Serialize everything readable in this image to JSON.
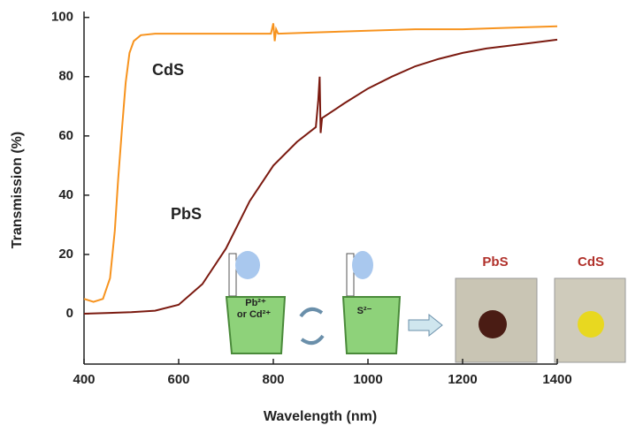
{
  "chart_data": {
    "type": "line",
    "xlabel": "Wavelength (nm)",
    "ylabel": "Transmission (%)",
    "xlim": [
      400,
      1400
    ],
    "ylim": [
      -17,
      102
    ],
    "xticks": [
      400,
      600,
      800,
      1000,
      1200,
      1400
    ],
    "yticks": [
      0,
      20,
      40,
      60,
      80,
      100
    ],
    "series": [
      {
        "name": "CdS",
        "color": "#f7931e",
        "x": [
          400,
          420,
          440,
          455,
          465,
          472,
          480,
          488,
          496,
          505,
          520,
          550,
          600,
          700,
          795,
          800,
          803,
          806,
          810,
          900,
          1000,
          1100,
          1200,
          1300,
          1400
        ],
        "values": [
          5,
          4,
          5,
          12,
          28,
          45,
          62,
          78,
          88,
          92,
          94,
          94.5,
          94.5,
          94.5,
          94.5,
          98,
          92,
          96,
          94.5,
          95,
          95.5,
          96,
          96,
          96.5,
          97
        ]
      },
      {
        "name": "PbS",
        "color": "#7b1a10",
        "x": [
          400,
          500,
          550,
          600,
          650,
          700,
          750,
          800,
          850,
          890,
          895,
          898,
          900,
          903,
          950,
          1000,
          1050,
          1100,
          1150,
          1200,
          1250,
          1300,
          1350,
          1400
        ],
        "values": [
          0,
          0.5,
          1,
          3,
          10,
          22,
          38,
          50,
          58,
          63,
          72,
          80,
          61,
          66,
          71,
          76,
          80,
          83.5,
          86,
          88,
          89.5,
          90.5,
          91.5,
          92.5
        ]
      }
    ],
    "annotations": [
      "CdS",
      "PbS"
    ],
    "inset": {
      "beaker_1": [
        "Pb²⁺",
        "or Cd²⁺"
      ],
      "beaker_2": "S²⁻",
      "photo_labels": [
        "PbS",
        "CdS"
      ]
    }
  }
}
